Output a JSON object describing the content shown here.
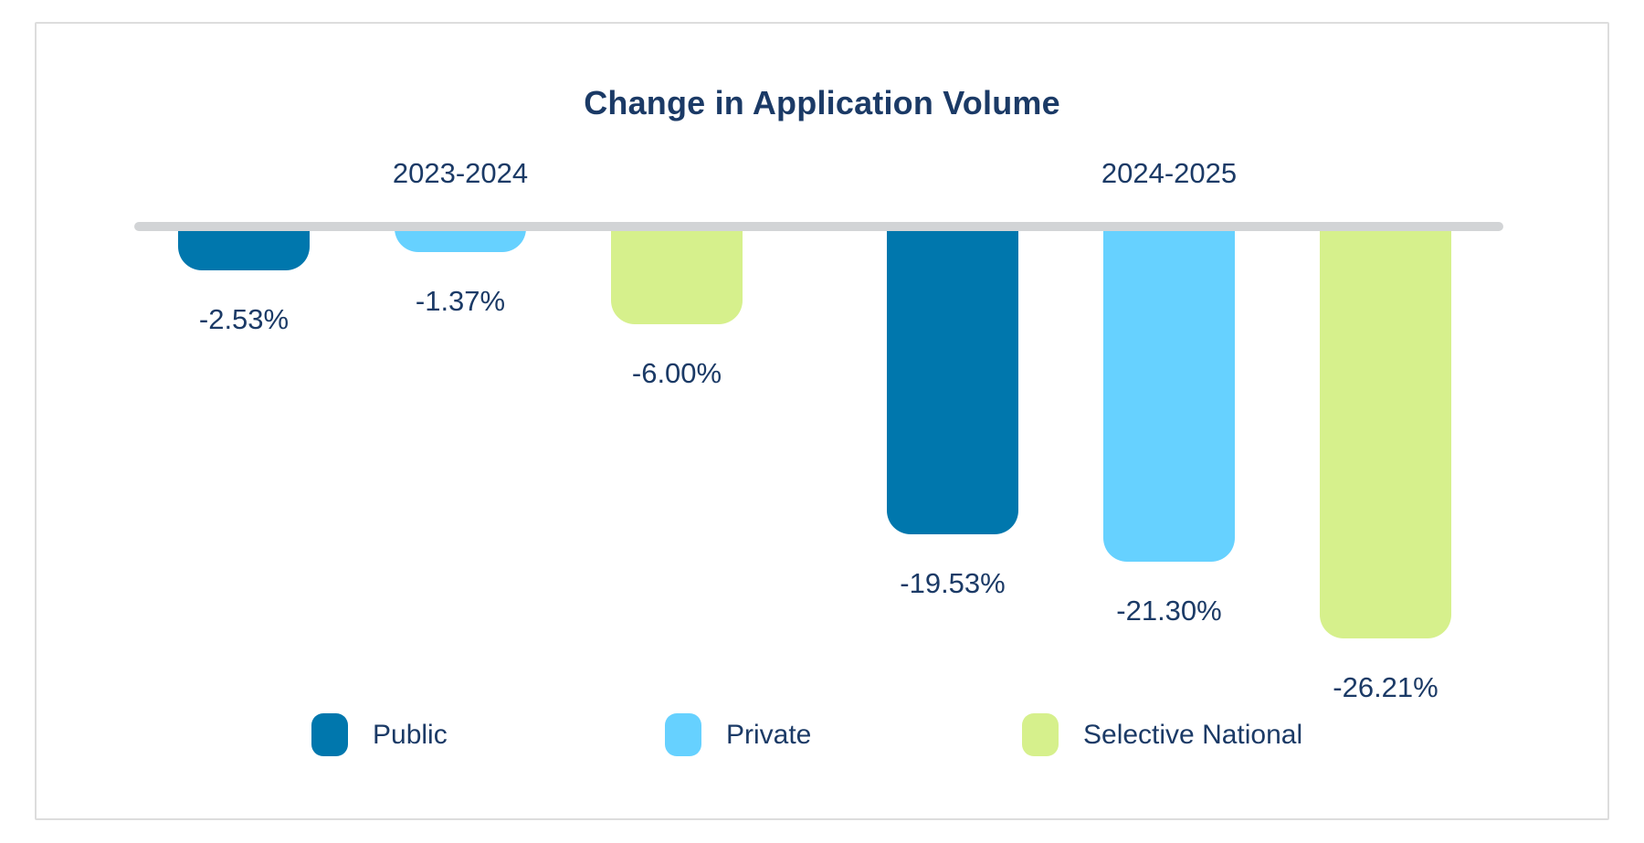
{
  "chart_data": {
    "type": "bar",
    "title": "Change in Application Volume",
    "groups": [
      {
        "label": "2023-2024"
      },
      {
        "label": "2024-2025"
      }
    ],
    "series": [
      {
        "name": "Public",
        "color": "#0077AD"
      },
      {
        "name": "Private",
        "color": "#66D1FF"
      },
      {
        "name": "Selective National",
        "color": "#D6F08C"
      }
    ],
    "bars": [
      {
        "group": "2023-2024",
        "series": "Public",
        "value": -2.53,
        "label": "-2.53%"
      },
      {
        "group": "2023-2024",
        "series": "Private",
        "value": -1.37,
        "label": "-1.37%"
      },
      {
        "group": "2023-2024",
        "series": "Selective National",
        "value": -6.0,
        "label": "-6.00%"
      },
      {
        "group": "2024-2025",
        "series": "Public",
        "value": -19.53,
        "label": "-19.53%"
      },
      {
        "group": "2024-2025",
        "series": "Private",
        "value": -21.3,
        "label": "-21.30%"
      },
      {
        "group": "2024-2025",
        "series": "Selective National",
        "value": -26.21,
        "label": "-26.21%"
      }
    ],
    "ylim": [
      -30,
      0
    ],
    "grid": false,
    "legend_position": "bottom",
    "colors": {
      "title_text": "#1B3A66",
      "label_text": "#1B3A66",
      "axis_line": "#D2D4D6",
      "card_border": "#DDDDDD",
      "background": "#FFFFFF"
    }
  }
}
